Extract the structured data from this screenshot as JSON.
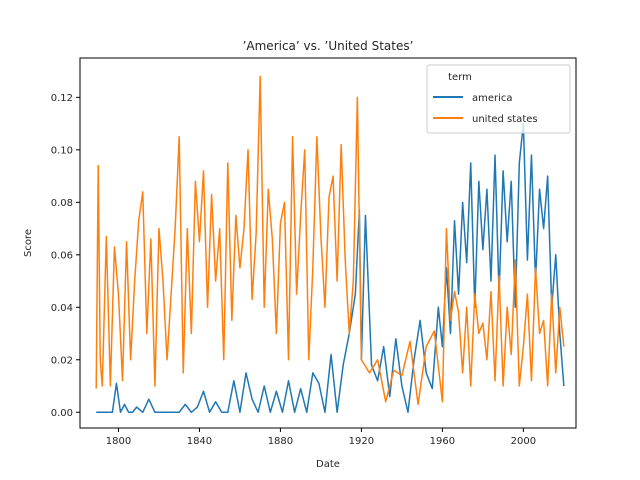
{
  "chart_data": {
    "type": "line",
    "title": "’America’ vs. ’United States’",
    "xlabel": "Date",
    "ylabel": "Score",
    "xlim": [
      1781,
      2026
    ],
    "ylim": [
      -0.006,
      0.135
    ],
    "xticks": [
      1800,
      1840,
      1880,
      1920,
      1960,
      2000
    ],
    "yticks": [
      0.0,
      0.02,
      0.04,
      0.06,
      0.08,
      0.1,
      0.12
    ],
    "ytick_labels": [
      "0.00",
      "0.02",
      "0.04",
      "0.06",
      "0.08",
      "0.10",
      "0.12"
    ],
    "grid": false,
    "legend": {
      "title": "term",
      "placement": "top-right"
    },
    "series": [
      {
        "name": "america",
        "color": "#1f77b4",
        "x": [
          1789,
          1792,
          1795,
          1797,
          1799,
          1801,
          1803,
          1805,
          1807,
          1809,
          1812,
          1815,
          1818,
          1821,
          1824,
          1827,
          1830,
          1833,
          1836,
          1839,
          1842,
          1845,
          1848,
          1851,
          1854,
          1857,
          1860,
          1863,
          1866,
          1869,
          1872,
          1875,
          1878,
          1881,
          1884,
          1887,
          1890,
          1893,
          1896,
          1899,
          1902,
          1905,
          1908,
          1911,
          1914,
          1917,
          1919,
          1920,
          1922,
          1925,
          1928,
          1931,
          1934,
          1937,
          1940,
          1943,
          1946,
          1949,
          1952,
          1955,
          1958,
          1960,
          1962,
          1964,
          1966,
          1968,
          1970,
          1972,
          1974,
          1976,
          1978,
          1980,
          1982,
          1984,
          1986,
          1988,
          1990,
          1992,
          1994,
          1996,
          1998,
          2000,
          2002,
          2004,
          2006,
          2008,
          2010,
          2012,
          2014,
          2016,
          2018,
          2020
        ],
        "y": [
          0.0,
          0.0,
          0.0,
          0.0,
          0.011,
          0.0,
          0.003,
          0.0,
          0.0,
          0.002,
          0.0,
          0.005,
          0.0,
          0.0,
          0.0,
          0.0,
          0.0,
          0.003,
          0.0,
          0.002,
          0.008,
          0.0,
          0.004,
          0.0,
          0.0,
          0.012,
          0.0,
          0.015,
          0.005,
          0.0,
          0.01,
          0.0,
          0.008,
          0.0,
          0.012,
          0.0,
          0.009,
          0.0,
          0.015,
          0.011,
          0.0,
          0.022,
          0.0,
          0.018,
          0.03,
          0.045,
          0.077,
          0.02,
          0.075,
          0.018,
          0.012,
          0.025,
          0.006,
          0.028,
          0.01,
          0.0,
          0.02,
          0.035,
          0.015,
          0.009,
          0.04,
          0.025,
          0.055,
          0.03,
          0.073,
          0.045,
          0.08,
          0.057,
          0.095,
          0.04,
          0.088,
          0.062,
          0.085,
          0.05,
          0.098,
          0.045,
          0.092,
          0.065,
          0.088,
          0.04,
          0.095,
          0.11,
          0.058,
          0.098,
          0.05,
          0.085,
          0.07,
          0.09,
          0.04,
          0.06,
          0.03,
          0.01
        ]
      },
      {
        "name": "united states",
        "color": "#ff7f0e",
        "x": [
          1789,
          1790,
          1791,
          1792,
          1794,
          1796,
          1798,
          1800,
          1802,
          1804,
          1806,
          1808,
          1810,
          1812,
          1814,
          1816,
          1818,
          1820,
          1822,
          1824,
          1826,
          1828,
          1830,
          1832,
          1834,
          1836,
          1838,
          1840,
          1842,
          1844,
          1846,
          1848,
          1850,
          1852,
          1854,
          1856,
          1858,
          1860,
          1862,
          1864,
          1866,
          1868,
          1870,
          1872,
          1874,
          1876,
          1878,
          1880,
          1882,
          1884,
          1886,
          1888,
          1890,
          1892,
          1894,
          1896,
          1898,
          1900,
          1902,
          1904,
          1906,
          1908,
          1910,
          1912,
          1914,
          1916,
          1918,
          1920,
          1924,
          1928,
          1932,
          1936,
          1940,
          1944,
          1948,
          1952,
          1956,
          1960,
          1962,
          1964,
          1966,
          1968,
          1970,
          1972,
          1974,
          1976,
          1978,
          1980,
          1982,
          1984,
          1986,
          1988,
          1990,
          1992,
          1994,
          1996,
          1998,
          2000,
          2002,
          2004,
          2006,
          2008,
          2010,
          2012,
          2014,
          2016,
          2018,
          2020
        ],
        "y": [
          0.009,
          0.094,
          0.02,
          0.01,
          0.067,
          0.01,
          0.063,
          0.045,
          0.012,
          0.065,
          0.02,
          0.05,
          0.073,
          0.084,
          0.03,
          0.066,
          0.01,
          0.07,
          0.05,
          0.02,
          0.045,
          0.07,
          0.105,
          0.015,
          0.07,
          0.03,
          0.088,
          0.065,
          0.092,
          0.04,
          0.083,
          0.05,
          0.07,
          0.02,
          0.095,
          0.035,
          0.075,
          0.055,
          0.07,
          0.1,
          0.043,
          0.068,
          0.128,
          0.04,
          0.085,
          0.066,
          0.03,
          0.072,
          0.08,
          0.02,
          0.105,
          0.045,
          0.075,
          0.1,
          0.02,
          0.055,
          0.105,
          0.067,
          0.04,
          0.082,
          0.09,
          0.05,
          0.102,
          0.058,
          0.03,
          0.05,
          0.12,
          0.02,
          0.015,
          0.02,
          0.004,
          0.016,
          0.014,
          0.027,
          0.003,
          0.025,
          0.031,
          0.004,
          0.07,
          0.035,
          0.046,
          0.038,
          0.015,
          0.04,
          0.01,
          0.045,
          0.03,
          0.034,
          0.02,
          0.046,
          0.012,
          0.052,
          0.01,
          0.04,
          0.022,
          0.058,
          0.01,
          0.025,
          0.045,
          0.012,
          0.055,
          0.03,
          0.035,
          0.01,
          0.045,
          0.015,
          0.04,
          0.025
        ]
      }
    ]
  }
}
